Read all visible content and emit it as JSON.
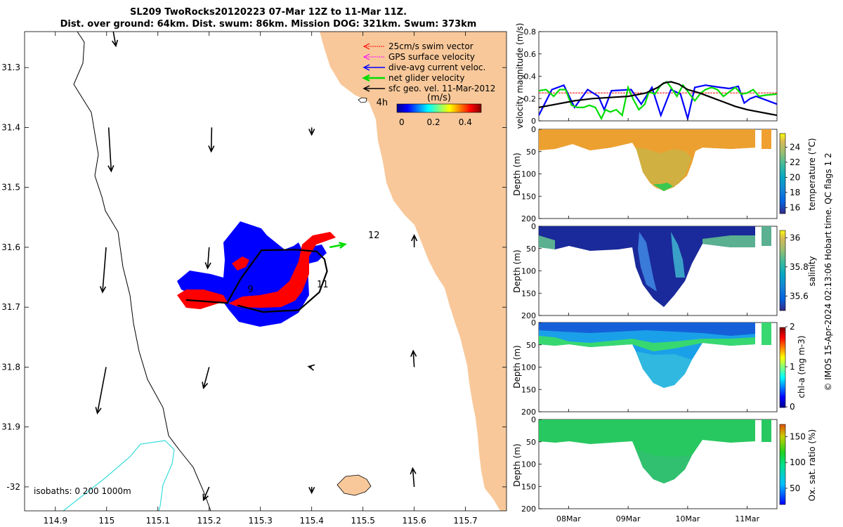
{
  "figure": {
    "title_line1": "SL209 TwoRocks20120223 07-Mar 12Z to 11-Mar 11Z.",
    "title_line2": "Dist. over ground: 64km. Dist. swum: 86km. Mission DOG: 321km. Swum: 373km",
    "credit": "© IMOS 15-Apr-2024 02:13:06 Hobart time. QC flags 1  2",
    "colors": {
      "land": "#f8c89a",
      "swim_vector": "#ff0000",
      "gps_velocity": "#ff00ff",
      "dive_avg_current": "#0000ff",
      "net_glider_velocity": "#00dd00",
      "sfc_geo_velocity": "#000000",
      "isobath_200": "#38dcdc"
    }
  },
  "chart_data": [
    {
      "type": "scatter",
      "panel": "map",
      "xlabel": "",
      "ylabel": "",
      "xlim": [
        114.84,
        115.78
      ],
      "ylim": [
        -32.04,
        -31.24
      ],
      "x_ticks": [
        "114.9",
        "115",
        "115.1",
        "115.2",
        "115.3",
        "115.4",
        "115.5",
        "115.6",
        "115.7"
      ],
      "x_tick_values": [
        114.9,
        115.0,
        115.1,
        115.2,
        115.3,
        115.4,
        115.5,
        115.6,
        115.7
      ],
      "y_ticks": [
        "31.3",
        "31.4",
        "31.5",
        "31.6",
        "31.7",
        "31.8",
        "31.9",
        "-32"
      ],
      "y_tick_values": [
        -31.3,
        -31.4,
        -31.5,
        -31.6,
        -31.7,
        -31.8,
        -31.9,
        -32.0
      ],
      "legend": {
        "placement": "top-right",
        "entries": [
          "25cm/s swim vector",
          "GPS surface velocity",
          "dive-avg current veloc.",
          "net glider velocity",
          "sfc geo. vel. 11-Mar-2012"
        ]
      },
      "colorbar": {
        "label": "(m/s)",
        "ticks": [
          "0",
          "0.2",
          "0.4"
        ],
        "tick_values": [
          0,
          0.2,
          0.4
        ],
        "range": [
          -0.03,
          0.5
        ]
      },
      "isobaths_label": "isobaths: 0   200  1000m",
      "annotations": [
        {
          "text": "4h",
          "lon": 115.526,
          "lat": -31.363
        },
        {
          "text": "9",
          "lon": 115.275,
          "lat": -31.675
        },
        {
          "text": "11",
          "lon": 115.41,
          "lat": -31.667
        },
        {
          "text": "12",
          "lon": 115.51,
          "lat": -31.585
        }
      ],
      "glider_track": [
        {
          "lon": 115.155,
          "lat": -31.688
        },
        {
          "lon": 115.235,
          "lat": -31.693
        },
        {
          "lon": 115.262,
          "lat": -31.652
        },
        {
          "lon": 115.285,
          "lat": -31.625
        },
        {
          "lon": 115.302,
          "lat": -31.605
        },
        {
          "lon": 115.368,
          "lat": -31.604
        },
        {
          "lon": 115.41,
          "lat": -31.607
        },
        {
          "lon": 115.425,
          "lat": -31.62
        },
        {
          "lon": 115.43,
          "lat": -31.64
        },
        {
          "lon": 115.415,
          "lat": -31.675
        },
        {
          "lon": 115.375,
          "lat": -31.705
        },
        {
          "lon": 115.305,
          "lat": -31.708
        },
        {
          "lon": 115.255,
          "lat": -31.697
        }
      ],
      "sfc_geo_vectors": [
        {
          "lon": 115.012,
          "lat": -31.235,
          "u": 0.006,
          "v": -0.029
        },
        {
          "lon": 115.004,
          "lat": -31.4,
          "u": 0.005,
          "v": -0.073
        },
        {
          "lon": 114.999,
          "lat": -31.6,
          "u": -0.007,
          "v": -0.075
        },
        {
          "lon": 114.999,
          "lat": -31.8,
          "u": -0.017,
          "v": -0.077
        },
        {
          "lon": 115.205,
          "lat": -31.4,
          "u": -0.001,
          "v": -0.04
        },
        {
          "lon": 115.2,
          "lat": -31.6,
          "u": -0.003,
          "v": -0.035
        },
        {
          "lon": 115.2,
          "lat": -31.8,
          "u": -0.011,
          "v": -0.035
        },
        {
          "lon": 115.2,
          "lat": -32.0,
          "u": -0.011,
          "v": -0.022
        },
        {
          "lon": 115.4,
          "lat": -31.4,
          "u": 0.0,
          "v": -0.012
        },
        {
          "lon": 115.4,
          "lat": -31.8,
          "u": -0.006,
          "v": 0.001
        },
        {
          "lon": 115.4,
          "lat": -32.0,
          "u": 0.0,
          "v": -0.01
        },
        {
          "lon": 115.6,
          "lat": -31.6,
          "u": 0.0,
          "v": 0.02
        },
        {
          "lon": 115.6,
          "lat": -31.8,
          "u": -0.002,
          "v": 0.027
        },
        {
          "lon": 115.6,
          "lat": -32.0,
          "u": -0.003,
          "v": 0.031
        }
      ],
      "net_glider_velocity_vector": {
        "lon": 115.435,
        "lat": -31.6,
        "u": 0.03,
        "v": 0.005
      }
    },
    {
      "type": "line",
      "panel": "velocity",
      "xlabel": "",
      "ylabel": "velocity magnitude (m/s)",
      "xlim": [
        7.5,
        11.5
      ],
      "ylim": [
        0,
        0.8
      ],
      "y_ticks": [
        "0",
        "0.2",
        "0.4",
        "0.6",
        "0.8"
      ],
      "y_tick_values": [
        0,
        0.2,
        0.4,
        0.6,
        0.8
      ],
      "x_ticks": [
        "08Mar",
        "09Mar",
        "10Mar",
        "11Mar"
      ],
      "x_tick_values": [
        8,
        9,
        10,
        11
      ],
      "series": [
        {
          "color": "#ff0000",
          "x": [
            7.5,
            11.5
          ],
          "y": [
            0.25,
            0.25
          ]
        },
        {
          "color": "#0000ff",
          "x": [
            7.5,
            7.72,
            7.92,
            8.1,
            8.32,
            8.5,
            8.6,
            8.72,
            9.05,
            9.22,
            9.4,
            9.55,
            9.72,
            9.88,
            10.0,
            10.12,
            10.3,
            10.55,
            10.7,
            10.85,
            10.95,
            11.05,
            11.15,
            11.5
          ],
          "y": [
            0.05,
            0.28,
            0.32,
            0.12,
            0.28,
            0.22,
            0.1,
            0.27,
            0.28,
            0.15,
            0.3,
            0.05,
            0.28,
            0.24,
            0.02,
            0.3,
            0.32,
            0.3,
            0.29,
            0.31,
            0.16,
            0.2,
            0.22,
            0.15
          ]
        },
        {
          "color": "#00dd00",
          "x": [
            7.5,
            7.62,
            7.75,
            7.85,
            7.95,
            8.05,
            8.15,
            8.25,
            8.35,
            8.45,
            8.55,
            8.62,
            8.7,
            8.8,
            8.9,
            9.0,
            9.08,
            9.18,
            9.28,
            9.35,
            9.45,
            9.55,
            9.65,
            9.72,
            9.82,
            9.92,
            10.02,
            10.12,
            10.22,
            10.3,
            10.4,
            10.5,
            10.6,
            10.7,
            10.8,
            10.9,
            11.0,
            11.1,
            11.2,
            11.3,
            11.5
          ],
          "y": [
            0.27,
            0.28,
            0.22,
            0.28,
            0.28,
            0.14,
            0.12,
            0.12,
            0.14,
            0.12,
            0.02,
            0.1,
            0.08,
            0.1,
            0.05,
            0.3,
            0.2,
            0.1,
            0.15,
            0.26,
            0.24,
            0.32,
            0.35,
            0.3,
            0.22,
            0.32,
            0.25,
            0.18,
            0.25,
            0.28,
            0.3,
            0.28,
            0.22,
            0.26,
            0.3,
            0.24,
            0.25,
            0.28,
            0.22,
            0.23,
            0.24
          ]
        },
        {
          "color": "#000000",
          "x": [
            7.5,
            7.8,
            8.1,
            8.4,
            8.7,
            9.0,
            9.3,
            9.5,
            9.6,
            9.72,
            9.85,
            10.0,
            10.2,
            10.4,
            10.6,
            10.8,
            11.0,
            11.2,
            11.4,
            11.5
          ],
          "y": [
            0.12,
            0.15,
            0.18,
            0.2,
            0.21,
            0.22,
            0.25,
            0.3,
            0.34,
            0.35,
            0.33,
            0.28,
            0.25,
            0.21,
            0.17,
            0.13,
            0.1,
            0.08,
            0.06,
            0.05
          ]
        }
      ]
    },
    {
      "type": "heatmap",
      "panel": "temperature",
      "ylabel": "Depth (m)",
      "colorbar_label": "temperature (°C)",
      "y_ticks": [
        "0",
        "50",
        "100",
        "150",
        "200"
      ],
      "colorbar_ticks": [
        "24",
        "22",
        "20",
        "18",
        "16"
      ],
      "colorbar_tick_values": [
        24,
        22,
        20,
        18,
        16
      ],
      "clim": [
        15.2,
        25.8
      ]
    },
    {
      "type": "heatmap",
      "panel": "salinity",
      "ylabel": "Depth (m)",
      "colorbar_label": "salinity",
      "y_ticks": [
        "0",
        "50",
        "100",
        "150",
        "200"
      ],
      "colorbar_ticks": [
        "36",
        "35.8",
        "35.6"
      ],
      "colorbar_tick_values": [
        36.0,
        35.8,
        35.6
      ],
      "clim": [
        35.5,
        36.05
      ]
    },
    {
      "type": "heatmap",
      "panel": "chlorophyll",
      "ylabel": "Depth (m)",
      "colorbar_label": "chl-a (mg m-3)",
      "y_ticks": [
        "0",
        "50",
        "100",
        "150",
        "200"
      ],
      "colorbar_ticks": [
        "2",
        "1",
        "0"
      ],
      "colorbar_tick_values": [
        2,
        1,
        0
      ],
      "clim": [
        0,
        2
      ]
    },
    {
      "type": "heatmap",
      "panel": "oxygen",
      "ylabel": "Depth (m)",
      "colorbar_label": "Ox. sat. ratio (%)",
      "y_ticks": [
        "0",
        "50",
        "100",
        "150",
        "200"
      ],
      "x_ticks": [
        "08Mar",
        "09Mar",
        "10Mar",
        "11Mar"
      ],
      "colorbar_ticks": [
        "150",
        "100",
        "50"
      ],
      "colorbar_tick_values": [
        150,
        100,
        50
      ],
      "clim": [
        20,
        175
      ]
    }
  ]
}
